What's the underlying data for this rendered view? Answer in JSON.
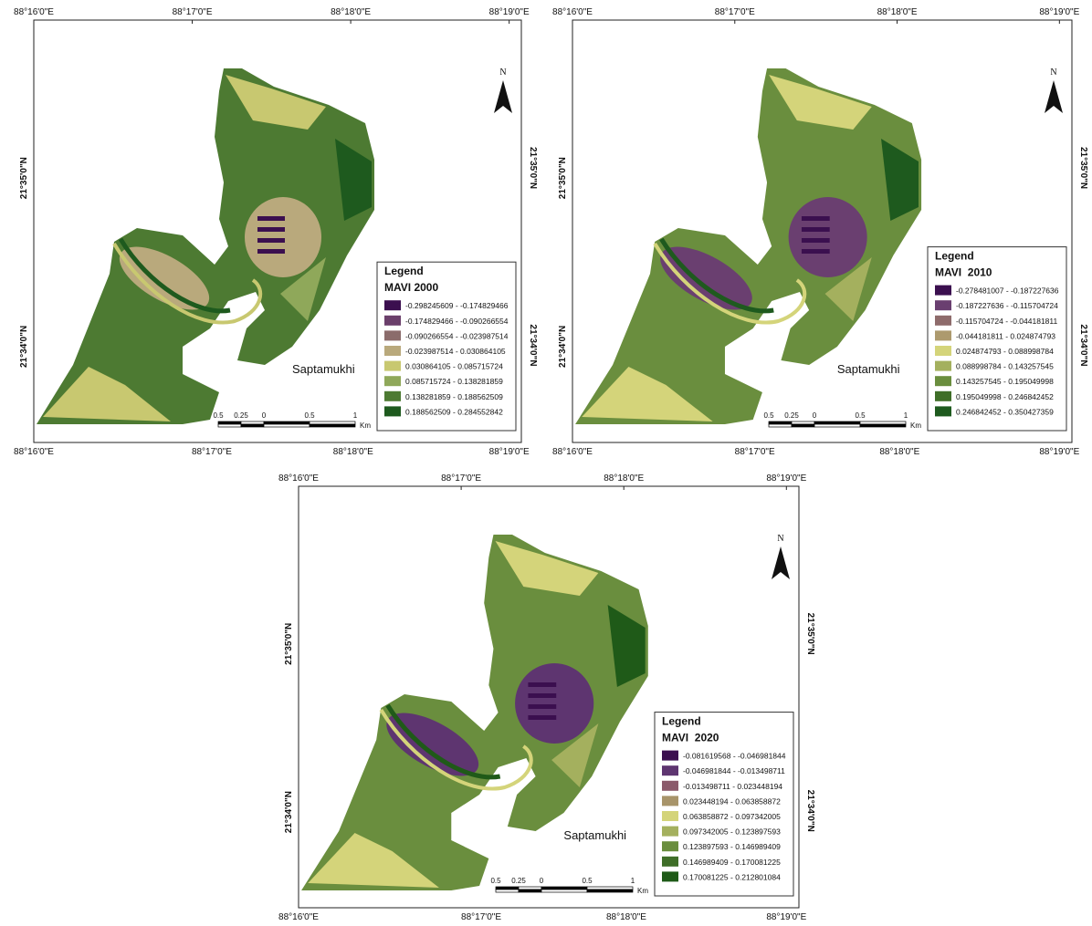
{
  "maps": [
    {
      "top_labels": [
        "88°16'0\"E",
        "88°17'0\"E",
        "88°18'0\"E",
        "88°19'0\"E"
      ],
      "bottom_labels": [
        "88°16'0\"E",
        "88°17'0\"E",
        "88°18'0\"E",
        "88°19'0\"E"
      ],
      "left_labels": [
        "21°35'0\"N",
        "21°34'0\"N"
      ],
      "right_labels": [
        "21°35'0\"N",
        "21°34'0\"N"
      ],
      "north": "N",
      "place_label": "Saptamukhi",
      "scale": {
        "labels": [
          "0.5",
          "0.25",
          "0",
          "0.5",
          "1"
        ],
        "unit": "Km"
      },
      "legend": {
        "title": "Legend",
        "subtitle": "MAVI 2000",
        "classes": [
          {
            "label": "-0.298245609 - -0.174829466",
            "color": "#3b0f4f"
          },
          {
            "label": "-0.174829466 - -0.090266554",
            "color": "#6b3f6b"
          },
          {
            "label": "-0.090266554 - -0.023987514",
            "color": "#8b6c6b"
          },
          {
            "label": "-0.023987514 - 0.030864105",
            "color": "#b9a97c"
          },
          {
            "label": "0.030864105 - 0.085715724",
            "color": "#c8c870"
          },
          {
            "label": "0.085715724 - 0.138281859",
            "color": "#8fa85a"
          },
          {
            "label": "0.138281859 - 0.188562509",
            "color": "#4d7a32"
          },
          {
            "label": "0.188562509 - 0.284552842",
            "color": "#1e5a1e"
          }
        ]
      }
    },
    {
      "top_labels": [
        "88°16'0\"E",
        "88°17'0\"E",
        "88°18'0\"E",
        "88°19'0\"E"
      ],
      "bottom_labels": [
        "88°16'0\"E",
        "88°17'0\"E",
        "88°18'0\"E",
        "88°19'0\"E"
      ],
      "left_labels": [
        "21°35'0\"N",
        "21°34'0\"N"
      ],
      "right_labels": [
        "21°35'0\"N",
        "21°34'0\"N"
      ],
      "north": "N",
      "place_label": "Saptamukhi",
      "scale": {
        "labels": [
          "0.5",
          "0.25",
          "0",
          "0.5",
          "1"
        ],
        "unit": "Km"
      },
      "legend": {
        "title": "Legend",
        "subtitle": "MAVI  2010",
        "classes": [
          {
            "label": "-0.278481007 - -0.187227636",
            "color": "#3b0f4f"
          },
          {
            "label": "-0.187227636 - -0.115704724",
            "color": "#6a3f70"
          },
          {
            "label": "-0.115704724 - -0.044181811",
            "color": "#8e6b6b"
          },
          {
            "label": "-0.044181811 - 0.024874793",
            "color": "#ad9a6e"
          },
          {
            "label": "0.024874793 - 0.088998784",
            "color": "#d4d47a"
          },
          {
            "label": "0.088998784 - 0.143257545",
            "color": "#a4b05e"
          },
          {
            "label": "0.143257545 - 0.195049998",
            "color": "#6a8e3e"
          },
          {
            "label": "0.195049998 - 0.246842452",
            "color": "#3f6e28"
          },
          {
            "label": "0.246842452 - 0.350427359",
            "color": "#1e5a1e"
          }
        ]
      }
    },
    {
      "top_labels": [
        "88°16'0\"E",
        "88°17'0\"E",
        "88°18'0\"E",
        "88°19'0\"E"
      ],
      "bottom_labels": [
        "88°16'0\"E",
        "88°17'0\"E",
        "88°18'0\"E",
        "88°19'0\"E"
      ],
      "left_labels": [
        "21°35'0\"N",
        "21°34'0\"N"
      ],
      "right_labels": [
        "21°35'0\"N",
        "21°34'0\"N"
      ],
      "north": "N",
      "place_label": "Saptamukhi",
      "scale": {
        "labels": [
          "0.5",
          "0.25",
          "0",
          "0.5",
          "1"
        ],
        "unit": "Km"
      },
      "legend": {
        "title": "Legend",
        "subtitle": "MAVI  2020",
        "classes": [
          {
            "label": "-0.081619568 - -0.046981844",
            "color": "#3b0f4f"
          },
          {
            "label": "-0.046981844 - -0.013498711",
            "color": "#5e3570"
          },
          {
            "label": "-0.013498711 - 0.023448194",
            "color": "#8b5a6b"
          },
          {
            "label": "0.023448194 - 0.063858872",
            "color": "#a8946a"
          },
          {
            "label": "0.063858872 - 0.097342005",
            "color": "#d4d47a"
          },
          {
            "label": "0.097342005 - 0.123897593",
            "color": "#a4b05e"
          },
          {
            "label": "0.123897593 - 0.146989409",
            "color": "#6a8e3e"
          },
          {
            "label": "0.146989409 - 0.170081225",
            "color": "#3f6e28"
          },
          {
            "label": "0.170081225 - 0.212801084",
            "color": "#1f5a18"
          }
        ]
      }
    }
  ]
}
